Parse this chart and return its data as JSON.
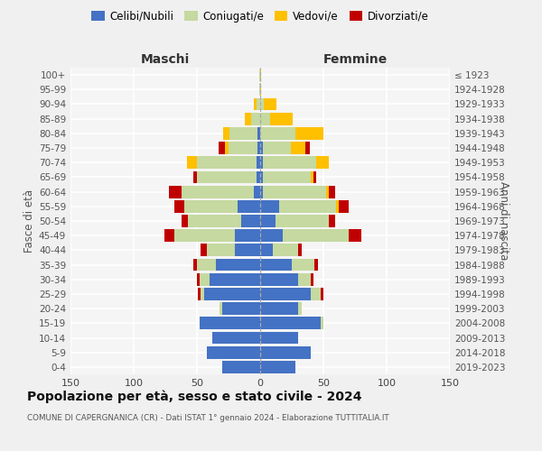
{
  "age_groups": [
    "0-4",
    "5-9",
    "10-14",
    "15-19",
    "20-24",
    "25-29",
    "30-34",
    "35-39",
    "40-44",
    "45-49",
    "50-54",
    "55-59",
    "60-64",
    "65-69",
    "70-74",
    "75-79",
    "80-84",
    "85-89",
    "90-94",
    "95-99",
    "100+"
  ],
  "birth_years": [
    "2019-2023",
    "2014-2018",
    "2009-2013",
    "2004-2008",
    "1999-2003",
    "1994-1998",
    "1989-1993",
    "1984-1988",
    "1979-1983",
    "1974-1978",
    "1969-1973",
    "1964-1968",
    "1959-1963",
    "1954-1958",
    "1949-1953",
    "1944-1948",
    "1939-1943",
    "1934-1938",
    "1929-1933",
    "1924-1928",
    "≤ 1923"
  ],
  "colors": {
    "celibi": "#4472c4",
    "coniugati": "#c5d9a0",
    "vedovi": "#ffc000",
    "divorziati": "#c00000"
  },
  "maschi_celibi": [
    30,
    42,
    38,
    48,
    30,
    44,
    40,
    35,
    20,
    20,
    15,
    18,
    5,
    3,
    3,
    2,
    2,
    0,
    0,
    0,
    0
  ],
  "maschi_coniugati": [
    0,
    0,
    0,
    0,
    2,
    3,
    8,
    15,
    22,
    48,
    42,
    42,
    57,
    47,
    47,
    23,
    22,
    7,
    3,
    1,
    1
  ],
  "maschi_vedovi": [
    0,
    0,
    0,
    0,
    0,
    0,
    0,
    0,
    0,
    0,
    0,
    0,
    0,
    0,
    8,
    3,
    5,
    5,
    2,
    0,
    0
  ],
  "maschi_divorziati": [
    0,
    0,
    0,
    0,
    0,
    2,
    2,
    3,
    5,
    8,
    5,
    8,
    10,
    3,
    0,
    5,
    0,
    0,
    0,
    0,
    0
  ],
  "femmine_nubili": [
    28,
    40,
    30,
    48,
    30,
    40,
    30,
    25,
    10,
    18,
    12,
    15,
    2,
    2,
    2,
    2,
    0,
    0,
    0,
    0,
    0
  ],
  "femmine_coniugate": [
    0,
    0,
    0,
    2,
    3,
    8,
    10,
    18,
    20,
    52,
    42,
    45,
    50,
    38,
    42,
    22,
    28,
    8,
    3,
    0,
    0
  ],
  "femmine_vedove": [
    0,
    0,
    0,
    0,
    0,
    0,
    0,
    0,
    0,
    0,
    0,
    2,
    2,
    2,
    10,
    12,
    22,
    18,
    10,
    1,
    1
  ],
  "femmine_divorziate": [
    0,
    0,
    0,
    0,
    0,
    2,
    2,
    3,
    3,
    10,
    5,
    8,
    5,
    2,
    0,
    3,
    0,
    0,
    0,
    0,
    0
  ],
  "title": "Popolazione per età, sesso e stato civile - 2024",
  "subtitle": "COMUNE DI CAPERGNANICA (CR) - Dati ISTAT 1° gennaio 2024 - Elaborazione TUTTITALIA.IT",
  "label_maschi": "Maschi",
  "label_femmine": "Femmine",
  "ylabel_left": "Fasce di età",
  "ylabel_right": "Anni di nascita",
  "xlim": 150,
  "bg_color": "#f5f5f5",
  "grid_color": "#ffffff",
  "legend_labels": [
    "Celibi/Nubili",
    "Coniugati/e",
    "Vedovi/e",
    "Divorziati/e"
  ]
}
